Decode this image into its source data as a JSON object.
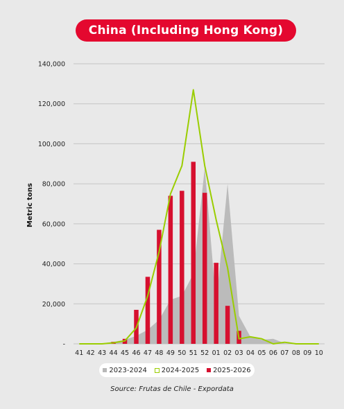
{
  "colors": {
    "background": "#e9e9e9",
    "title_pill": "#e4082f",
    "series_2023_2024": "#b8b8b8",
    "series_2024_2025": "#9acd00",
    "series_2025_2026": "#d6102f"
  },
  "chart_data": {
    "type": "bar",
    "title": "China (Including Hong Kong)",
    "ylabel": "Metric tons",
    "xlabel": "",
    "ylim": [
      0,
      140000
    ],
    "y_ticks": [
      0,
      20000,
      40000,
      60000,
      80000,
      100000,
      120000,
      140000
    ],
    "y_tick_labels": [
      "-",
      "20,000",
      "40,000",
      "60,000",
      "80,000",
      "100,000",
      "120,000",
      "140,000"
    ],
    "grid": true,
    "legend_position": "bottom",
    "categories": [
      "41",
      "42",
      "43",
      "44",
      "45",
      "46",
      "47",
      "48",
      "49",
      "50",
      "51",
      "52",
      "01",
      "02",
      "03",
      "04",
      "05",
      "06",
      "07",
      "08",
      "09",
      "10"
    ],
    "series": [
      {
        "name": "2023-2024",
        "type": "area",
        "values": [
          0,
          0,
          200,
          1000,
          2000,
          4000,
          7000,
          12000,
          22000,
          24000,
          35000,
          88000,
          20000,
          80000,
          14000,
          3500,
          2000,
          2500,
          300,
          100,
          0,
          0
        ]
      },
      {
        "name": "2024-2025",
        "type": "line",
        "values": [
          0,
          0,
          0,
          500,
          1500,
          8000,
          24000,
          46000,
          75000,
          89000,
          127000,
          89000,
          62000,
          38000,
          2500,
          3500,
          2500,
          0,
          800,
          0,
          0,
          0
        ]
      },
      {
        "name": "2025-2026",
        "type": "bar",
        "values": [
          0,
          0,
          0,
          1000,
          2500,
          17000,
          33500,
          57000,
          74000,
          76500,
          91000,
          75500,
          40500,
          19000,
          6500,
          0,
          0,
          0,
          0,
          0,
          0,
          0
        ]
      }
    ],
    "source": "Source: Frutas de Chile - Expordata"
  }
}
